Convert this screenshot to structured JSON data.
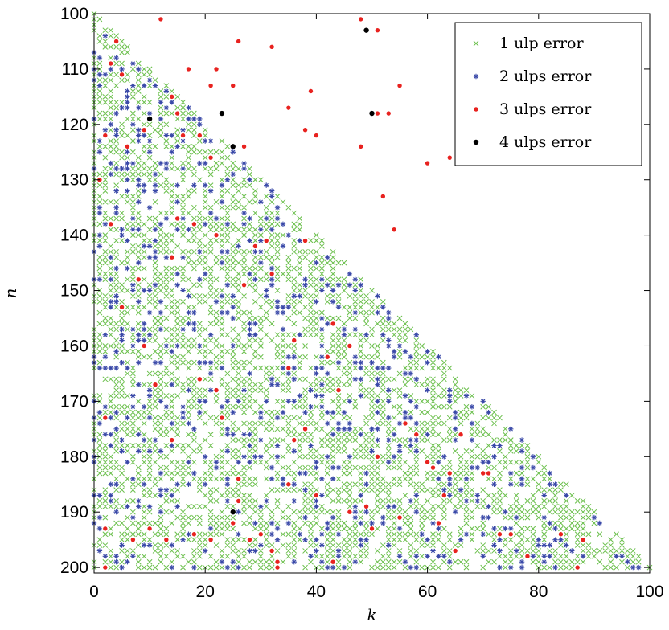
{
  "chart_data": {
    "type": "scatter",
    "title": "",
    "xlabel": "k",
    "ylabel": "n",
    "xlim": [
      0,
      100
    ],
    "ylim": [
      100,
      201
    ],
    "y_reversed": true,
    "x_ticks": [
      "0",
      "20",
      "40",
      "60",
      "80",
      "100"
    ],
    "y_ticks": [
      "100",
      "110",
      "120",
      "130",
      "140",
      "150",
      "160",
      "170",
      "180",
      "190",
      "200"
    ],
    "grid": false,
    "legend_position": "top-right",
    "domain_note": "points satisfy 0 <= k <= n - 100",
    "series": [
      {
        "name": "1 ulp error",
        "marker": "x",
        "color": "#6abf4b",
        "sampling": {
          "generated": true,
          "density": 0.58,
          "seed": 11
        }
      },
      {
        "name": "2 ulps error",
        "marker": "*",
        "color": "#3a49a8",
        "sampling": {
          "generated": true,
          "density": 0.13,
          "seed": 23
        }
      },
      {
        "name": "3 ulps error",
        "marker": "dot",
        "color": "#e8221f",
        "points": [
          [
            48,
            101
          ],
          [
            12,
            101
          ],
          [
            51,
            103
          ],
          [
            4,
            105
          ],
          [
            26,
            105
          ],
          [
            32,
            106
          ],
          [
            3,
            109
          ],
          [
            17,
            110
          ],
          [
            22,
            110
          ],
          [
            5,
            111
          ],
          [
            21,
            113
          ],
          [
            25,
            113
          ],
          [
            55,
            113
          ],
          [
            39,
            114
          ],
          [
            14,
            115
          ],
          [
            35,
            117
          ],
          [
            15,
            118
          ],
          [
            51,
            118
          ],
          [
            53,
            118
          ],
          [
            9,
            121
          ],
          [
            38,
            121
          ],
          [
            2,
            122
          ],
          [
            19,
            122
          ],
          [
            16,
            122
          ],
          [
            40,
            122
          ],
          [
            27,
            124
          ],
          [
            6,
            124
          ],
          [
            48,
            124
          ],
          [
            64,
            126
          ],
          [
            21,
            126
          ],
          [
            60,
            127
          ],
          [
            1,
            130
          ],
          [
            52,
            133
          ],
          [
            15,
            137
          ],
          [
            18,
            138
          ],
          [
            3,
            138
          ],
          [
            54,
            139
          ],
          [
            22,
            140
          ],
          [
            31,
            141
          ],
          [
            38,
            141
          ],
          [
            29,
            142
          ],
          [
            14,
            144
          ],
          [
            32,
            147
          ],
          [
            8,
            148
          ],
          [
            27,
            149
          ],
          [
            5,
            153
          ],
          [
            43,
            156
          ],
          [
            36,
            159
          ],
          [
            46,
            160
          ],
          [
            9,
            160
          ],
          [
            42,
            162
          ],
          [
            35,
            164
          ],
          [
            19,
            166
          ],
          [
            22,
            168
          ],
          [
            11,
            167
          ],
          [
            44,
            168
          ],
          [
            2,
            173
          ],
          [
            23,
            173
          ],
          [
            56,
            174
          ],
          [
            38,
            175
          ],
          [
            58,
            176
          ],
          [
            66,
            176
          ],
          [
            14,
            177
          ],
          [
            36,
            177
          ],
          [
            51,
            180
          ],
          [
            60,
            181
          ],
          [
            70,
            183
          ],
          [
            64,
            183
          ],
          [
            61,
            182
          ],
          [
            71,
            183
          ],
          [
            26,
            184
          ],
          [
            35,
            185
          ],
          [
            40,
            187
          ],
          [
            63,
            187
          ],
          [
            26,
            188
          ],
          [
            49,
            189
          ],
          [
            46,
            190
          ],
          [
            55,
            191
          ],
          [
            62,
            192
          ],
          [
            25,
            192
          ],
          [
            50,
            193
          ],
          [
            10,
            193
          ],
          [
            2,
            193
          ],
          [
            18,
            194
          ],
          [
            30,
            194
          ],
          [
            28,
            195
          ],
          [
            21,
            195
          ],
          [
            13,
            195
          ],
          [
            7,
            195
          ],
          [
            73,
            194
          ],
          [
            75,
            194
          ],
          [
            84,
            194
          ],
          [
            88,
            195
          ],
          [
            32,
            197
          ],
          [
            65,
            197
          ],
          [
            78,
            198
          ],
          [
            33,
            199
          ],
          [
            43,
            199
          ],
          [
            87,
            200
          ],
          [
            33,
            200
          ],
          [
            2,
            200
          ]
        ]
      },
      {
        "name": "4 ulps error",
        "marker": "dot",
        "color": "#000000",
        "points": [
          [
            49,
            103
          ],
          [
            23,
            118
          ],
          [
            50,
            118
          ],
          [
            10,
            119
          ],
          [
            25,
            124
          ],
          [
            25,
            190
          ]
        ]
      }
    ]
  }
}
